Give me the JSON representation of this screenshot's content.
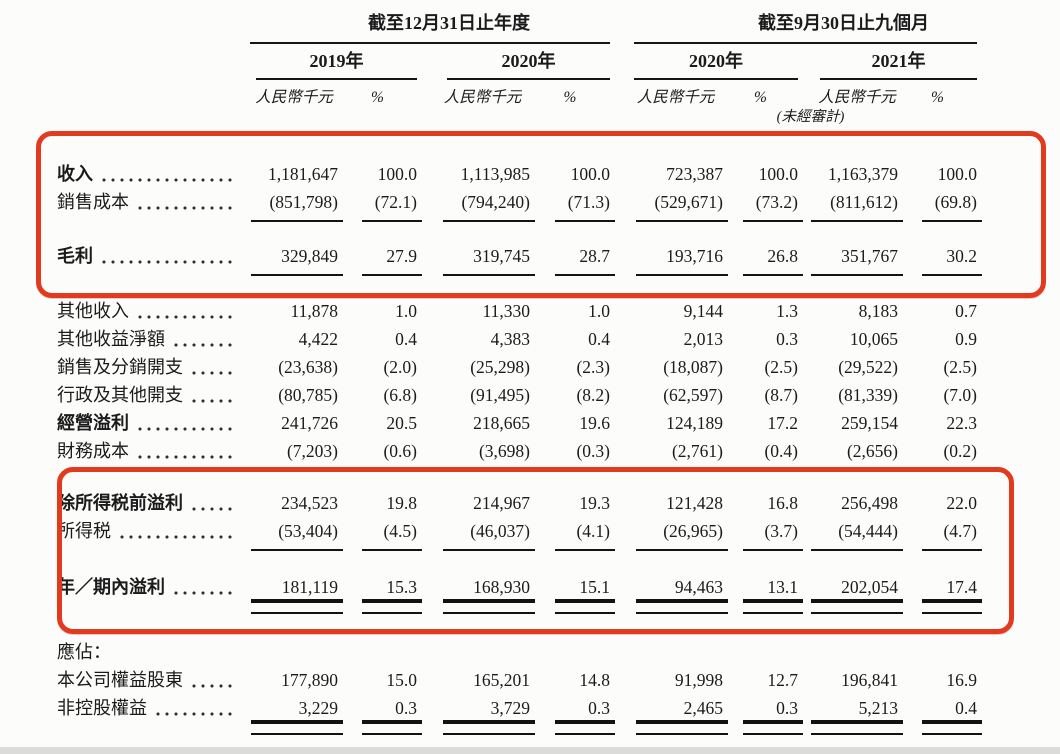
{
  "document": {
    "type": "income-statement-table",
    "language": "zh-Hant",
    "highlight_color": "#e13a1e"
  },
  "header": {
    "period1": {
      "title": "截至12月31日止年度",
      "years": [
        "2019年",
        "2020年"
      ]
    },
    "period2": {
      "title": "截至9月30日止九個月",
      "years": [
        "2020年",
        "2021年"
      ]
    },
    "currency_label": "人民幣千元",
    "percent_label": "%",
    "unaudited_note": "(未經審計)"
  },
  "rows": [
    {
      "label": "收入",
      "bold": true,
      "values": [
        "1,181,647",
        "100.0",
        "1,113,985",
        "100.0",
        "723,387",
        "100.0",
        "1,163,379",
        "100.0"
      ],
      "rule": "none"
    },
    {
      "label": "銷售成本",
      "bold": false,
      "values": [
        "(851,798)",
        "(72.1)",
        "(794,240)",
        "(71.3)",
        "(529,671)",
        "(73.2)",
        "(811,612)",
        "(69.8)"
      ],
      "rule": "single"
    },
    {
      "gap": 26
    },
    {
      "label": "毛利",
      "bold": true,
      "values": [
        "329,849",
        "27.9",
        "319,745",
        "28.7",
        "193,716",
        "26.8",
        "351,767",
        "30.2"
      ],
      "rule": "single"
    },
    {
      "gap": 27
    },
    {
      "label": "其他收入",
      "bold": false,
      "values": [
        "11,878",
        "1.0",
        "11,330",
        "1.0",
        "9,144",
        "1.3",
        "8,183",
        "0.7"
      ],
      "rule": "none"
    },
    {
      "label": "其他收益淨額",
      "bold": false,
      "values": [
        "4,422",
        "0.4",
        "4,383",
        "0.4",
        "2,013",
        "0.3",
        "10,065",
        "0.9"
      ],
      "rule": "none"
    },
    {
      "label": "銷售及分銷開支",
      "bold": false,
      "values": [
        "(23,638)",
        "(2.0)",
        "(25,298)",
        "(2.3)",
        "(18,087)",
        "(2.5)",
        "(29,522)",
        "(2.5)"
      ],
      "rule": "none"
    },
    {
      "label": "行政及其他開支",
      "bold": false,
      "values": [
        "(80,785)",
        "(6.8)",
        "(91,495)",
        "(8.2)",
        "(62,597)",
        "(8.7)",
        "(81,339)",
        "(7.0)"
      ],
      "rule": "none"
    },
    {
      "label": "經營溢利",
      "bold": true,
      "values": [
        "241,726",
        "20.5",
        "218,665",
        "19.6",
        "124,189",
        "17.2",
        "259,154",
        "22.3"
      ],
      "rule": "none"
    },
    {
      "label": "財務成本",
      "bold": false,
      "values": [
        "(7,203)",
        "(0.6)",
        "(3,698)",
        "(0.3)",
        "(2,761)",
        "(0.4)",
        "(2,656)",
        "(0.2)"
      ],
      "rule": "single"
    },
    {
      "gap": 24
    },
    {
      "label": "除所得税前溢利",
      "bold": true,
      "values": [
        "234,523",
        "19.8",
        "214,967",
        "19.3",
        "121,428",
        "16.8",
        "256,498",
        "22.0"
      ],
      "rule": "none"
    },
    {
      "label": "所得税",
      "bold": false,
      "values": [
        "(53,404)",
        "(4.5)",
        "(46,037)",
        "(4.1)",
        "(26,965)",
        "(3.7)",
        "(54,444)",
        "(4.7)"
      ],
      "rule": "single"
    },
    {
      "gap": 28
    },
    {
      "label": "年／期內溢利",
      "bold": true,
      "values": [
        "181,119",
        "15.3",
        "168,930",
        "15.1",
        "94,463",
        "13.1",
        "202,054",
        "17.4"
      ],
      "rule": "double"
    },
    {
      "gap": 37
    },
    {
      "label": "應佔：",
      "bold": false,
      "leader": false,
      "values": null,
      "rule": "none"
    },
    {
      "label": "本公司權益股東",
      "bold": false,
      "values": [
        "177,890",
        "15.0",
        "165,201",
        "14.8",
        "91,998",
        "12.7",
        "196,841",
        "16.9"
      ],
      "rule": "none"
    },
    {
      "label": "非控股權益",
      "bold": false,
      "values": [
        "3,229",
        "0.3",
        "3,729",
        "0.3",
        "2,465",
        "0.3",
        "5,213",
        "0.4"
      ],
      "rule": "double"
    }
  ]
}
